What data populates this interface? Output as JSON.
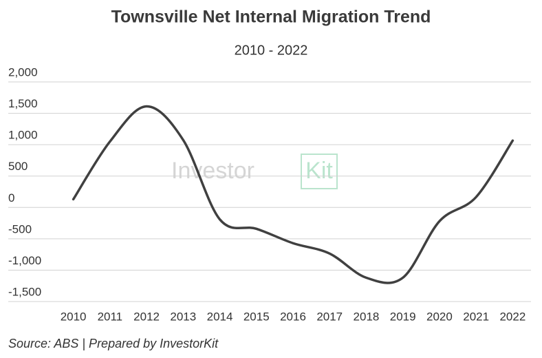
{
  "chart_data": {
    "type": "line",
    "title": "Townsville Net Internal Migration Trend",
    "subtitle": "2010 - 2022",
    "source": "Source: ABS | Prepared by InvestorKit",
    "watermark": "Investor",
    "watermark_box": "Kit",
    "categories": [
      "2010",
      "2011",
      "2012",
      "2013",
      "2014",
      "2015",
      "2016",
      "2017",
      "2018",
      "2019",
      "2020",
      "2021",
      "2022"
    ],
    "series": [
      {
        "name": "Net Internal Migration",
        "color": "#404040",
        "values": [
          130,
          1050,
          1610,
          1075,
          -190,
          -340,
          -570,
          -735,
          -1120,
          -1120,
          -220,
          165,
          1065
        ]
      }
    ],
    "ylim": [
      -1500,
      2000
    ],
    "yticks": [
      {
        "value": -1500,
        "label": "-1,500"
      },
      {
        "value": -1000,
        "label": "-1,000"
      },
      -500,
      0,
      500,
      {
        "value": 1000,
        "label": "1,000"
      },
      {
        "value": 1500,
        "label": "1,500"
      },
      {
        "value": 2000,
        "label": "2,000"
      }
    ],
    "grid": true
  }
}
